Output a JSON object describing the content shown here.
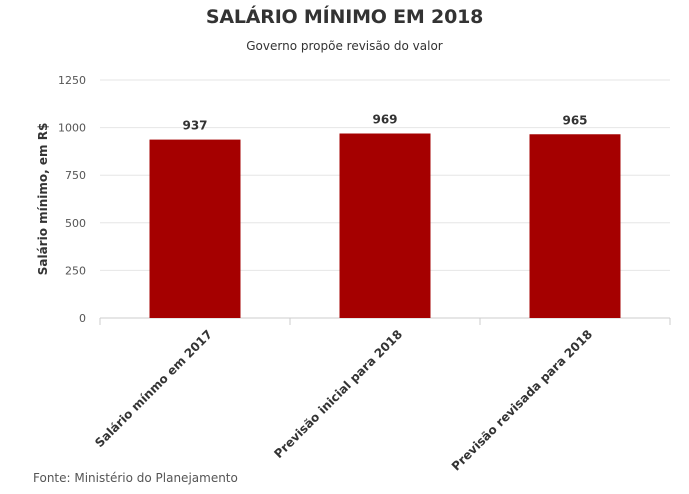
{
  "chart_data": {
    "type": "bar",
    "title": "SALÁRIO MÍNIMO EM 2018",
    "subtitle": "Governo propõe revisão do valor",
    "ylabel": "Salário mínimo, em R$",
    "xlabel": "",
    "categories": [
      "Salário mínmo em 2017",
      "Previsão inicial para 2018",
      "Previsão revisada para 2018"
    ],
    "values": [
      937,
      969,
      965
    ],
    "data_labels": [
      "937",
      "969",
      "965"
    ],
    "ylim": [
      0,
      1250
    ],
    "yticks": [
      0,
      250,
      500,
      750,
      1000,
      1250
    ],
    "grid": true,
    "bar_color": "#a50000"
  },
  "source": "Fonte: Ministério do Planejamento"
}
